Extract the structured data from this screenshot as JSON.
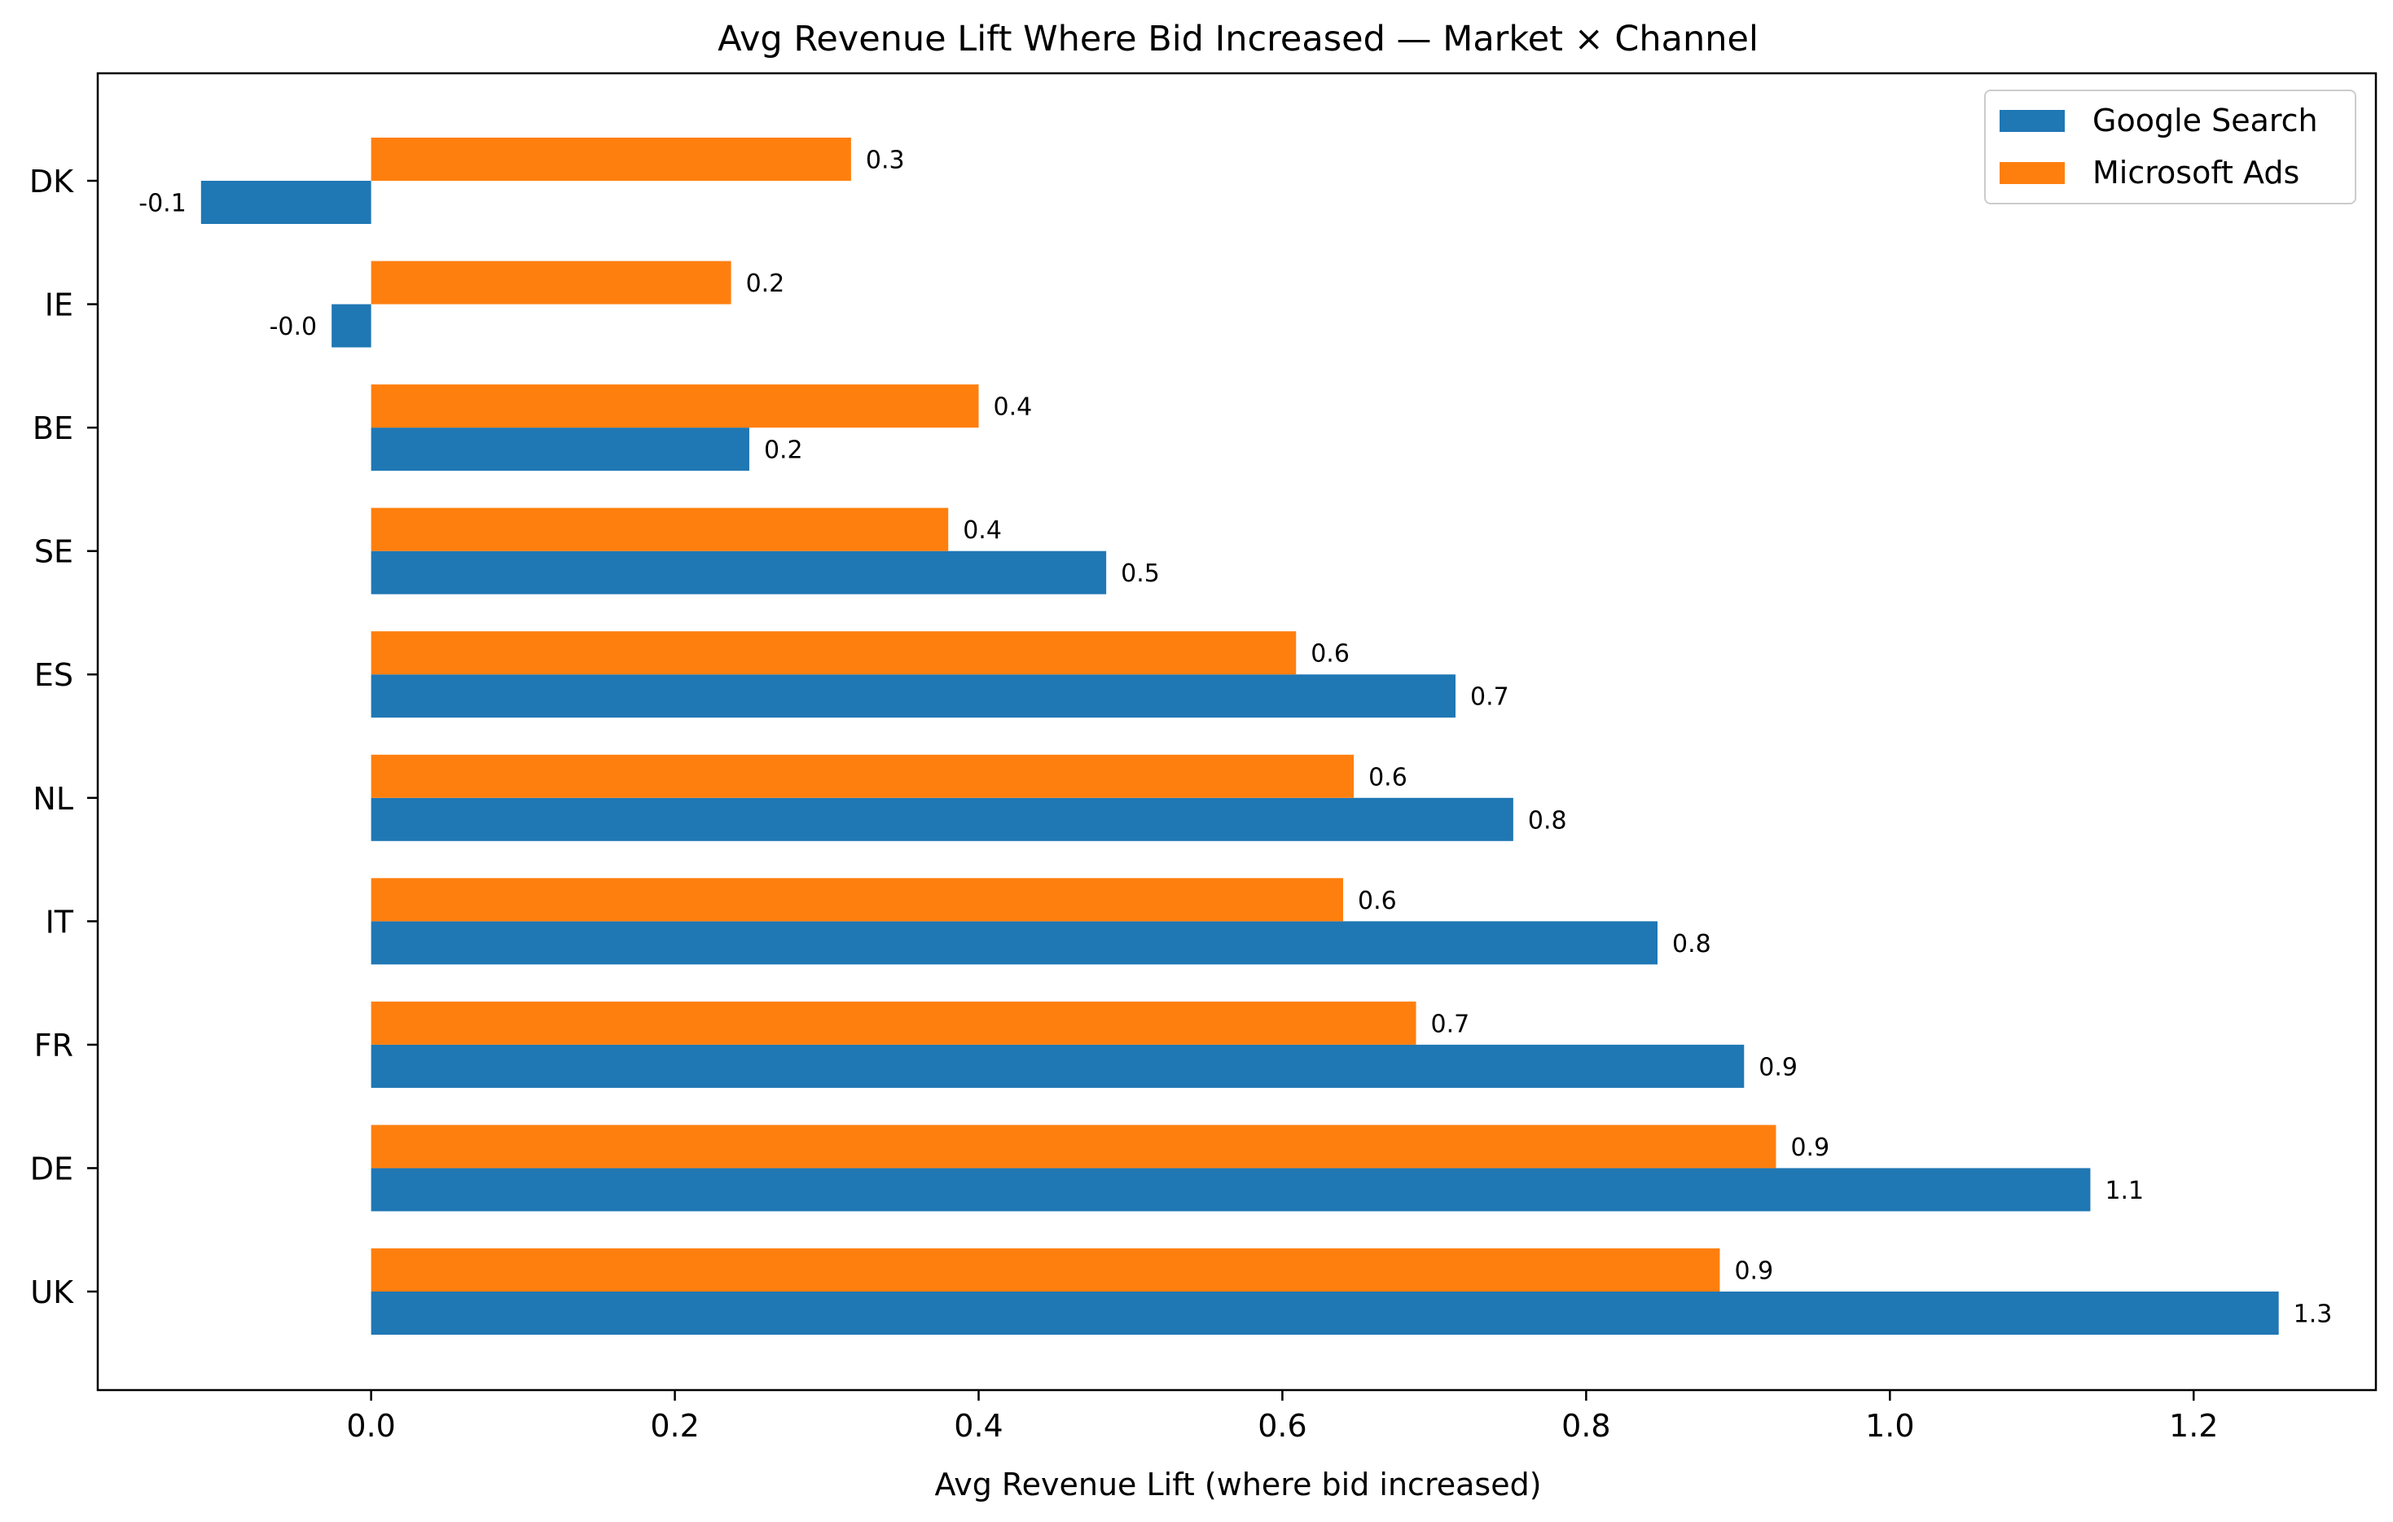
{
  "chart_data": {
    "type": "bar",
    "orientation": "horizontal",
    "title": "Avg Revenue Lift Where Bid Increased — Market × Channel",
    "xlabel": "Avg Revenue Lift (where bid increased)",
    "ylabel": "",
    "xlim": [
      -0.18,
      1.32
    ],
    "xticks": [
      0.0,
      0.2,
      0.4,
      0.6,
      0.8,
      1.0,
      1.2
    ],
    "xtick_labels": [
      "0.0",
      "0.2",
      "0.4",
      "0.6",
      "0.8",
      "1.0",
      "1.2"
    ],
    "categories": [
      "DK",
      "IE",
      "BE",
      "SE",
      "ES",
      "NL",
      "IT",
      "FR",
      "DE",
      "UK"
    ],
    "series": [
      {
        "name": "Google Search",
        "color": "#1f77b4",
        "values": [
          -0.112,
          -0.026,
          0.249,
          0.484,
          0.714,
          0.752,
          0.847,
          0.904,
          1.132,
          1.256
        ],
        "labels": [
          "-0.1",
          "-0.0",
          "0.2",
          "0.5",
          "0.7",
          "0.8",
          "0.8",
          "0.9",
          "1.1",
          "1.3"
        ]
      },
      {
        "name": "Microsoft Ads",
        "color": "#ff7f0e",
        "values": [
          0.316,
          0.237,
          0.4,
          0.38,
          0.609,
          0.647,
          0.64,
          0.688,
          0.925,
          0.888
        ],
        "labels": [
          "0.3",
          "0.2",
          "0.4",
          "0.4",
          "0.6",
          "0.6",
          "0.6",
          "0.7",
          "0.9",
          "0.9"
        ]
      }
    ],
    "grid": false,
    "legend_position": "top-right"
  }
}
